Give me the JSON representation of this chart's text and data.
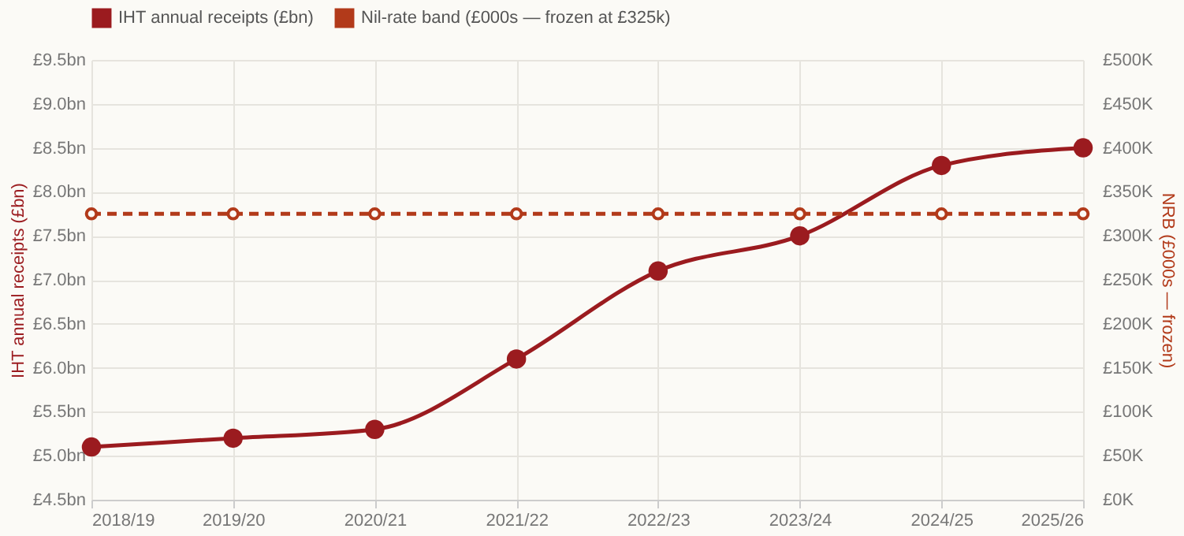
{
  "chart_data": {
    "type": "line",
    "categories": [
      "2018/19",
      "2019/20",
      "2020/21",
      "2021/22",
      "2022/23",
      "2023/24",
      "2024/25",
      "2025/26"
    ],
    "series": [
      {
        "name": "IHT annual receipts (£bn)",
        "color": "#9b1b1f",
        "line_style": "solid",
        "values": [
          5.1,
          5.2,
          5.3,
          6.1,
          7.1,
          7.5,
          8.3,
          8.5
        ]
      },
      {
        "name": "Nil-rate band (£000s — frozen at £325k)",
        "color": "#b23a1a",
        "line_style": "dashed",
        "axis": "y2",
        "values": [
          325,
          325,
          325,
          325,
          325,
          325,
          325,
          325
        ]
      }
    ],
    "ylabel": "IHT annual receipts (£bn)",
    "y2label": "NRB (£000s — frozen)",
    "ylim": [
      4.5,
      9.5
    ],
    "yticks": [
      {
        "value": 4.5,
        "label": "£4.5bn"
      },
      {
        "value": 5.0,
        "label": "£5.0bn"
      },
      {
        "value": 5.5,
        "label": "£5.5bn"
      },
      {
        "value": 6.0,
        "label": "£6.0bn"
      },
      {
        "value": 6.5,
        "label": "£6.5bn"
      },
      {
        "value": 7.0,
        "label": "£7.0bn"
      },
      {
        "value": 7.5,
        "label": "£7.5bn"
      },
      {
        "value": 8.0,
        "label": "£8.0bn"
      },
      {
        "value": 8.5,
        "label": "£8.5bn"
      },
      {
        "value": 9.0,
        "label": "£9.0bn"
      },
      {
        "value": 9.5,
        "label": "£9.5bn"
      }
    ],
    "y2lim": [
      0,
      500
    ],
    "y2ticks": [
      {
        "value": 0,
        "label": "£0K"
      },
      {
        "value": 50,
        "label": "£50K"
      },
      {
        "value": 100,
        "label": "£100K"
      },
      {
        "value": 150,
        "label": "£150K"
      },
      {
        "value": 200,
        "label": "£200K"
      },
      {
        "value": 250,
        "label": "£250K"
      },
      {
        "value": 300,
        "label": "£300K"
      },
      {
        "value": 350,
        "label": "£350K"
      },
      {
        "value": 400,
        "label": "£400K"
      },
      {
        "value": 450,
        "label": "£450K"
      },
      {
        "value": 500,
        "label": "£500K"
      }
    ],
    "grid": true,
    "legend": "top",
    "marker": "circle"
  }
}
